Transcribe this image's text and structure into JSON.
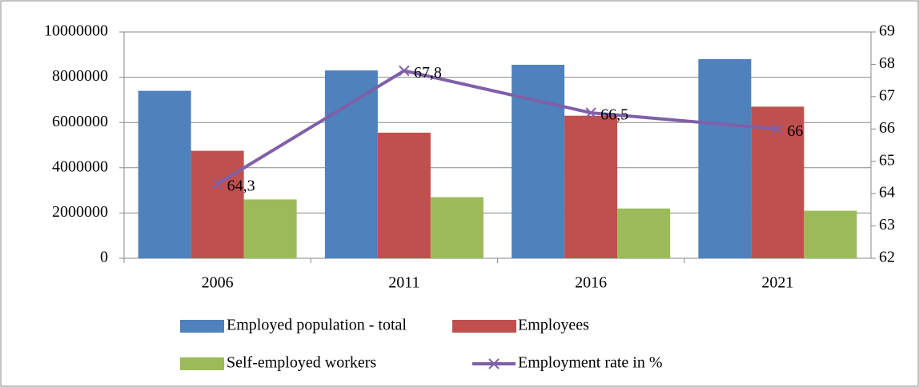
{
  "chart_data": {
    "type": "bar",
    "categories": [
      "2006",
      "2011",
      "2016",
      "2021"
    ],
    "series": [
      {
        "name": "Employed population - total",
        "color": "#4f81bd",
        "values": [
          7400000,
          8300000,
          8550000,
          8800000
        ]
      },
      {
        "name": "Employees",
        "color": "#c0504d",
        "values": [
          4750000,
          5550000,
          6300000,
          6700000
        ]
      },
      {
        "name": "Self-employed workers",
        "color": "#9bbb59",
        "values": [
          2600000,
          2700000,
          2200000,
          2100000
        ]
      },
      {
        "name": "Employment rate in %",
        "color": "#7f60a8",
        "type": "line",
        "axis": "y2",
        "values": [
          64.3,
          67.8,
          66.5,
          66
        ],
        "value_labels": [
          "64,3",
          "67,8",
          "66,5",
          "66"
        ]
      }
    ],
    "ylim": [
      0,
      10000000
    ],
    "yticks": [
      0,
      2000000,
      4000000,
      6000000,
      8000000,
      10000000
    ],
    "y2lim": [
      62,
      69
    ],
    "y2ticks": [
      62,
      63,
      64,
      65,
      66,
      67,
      68,
      69
    ],
    "grid": true,
    "legend": "bottom"
  }
}
